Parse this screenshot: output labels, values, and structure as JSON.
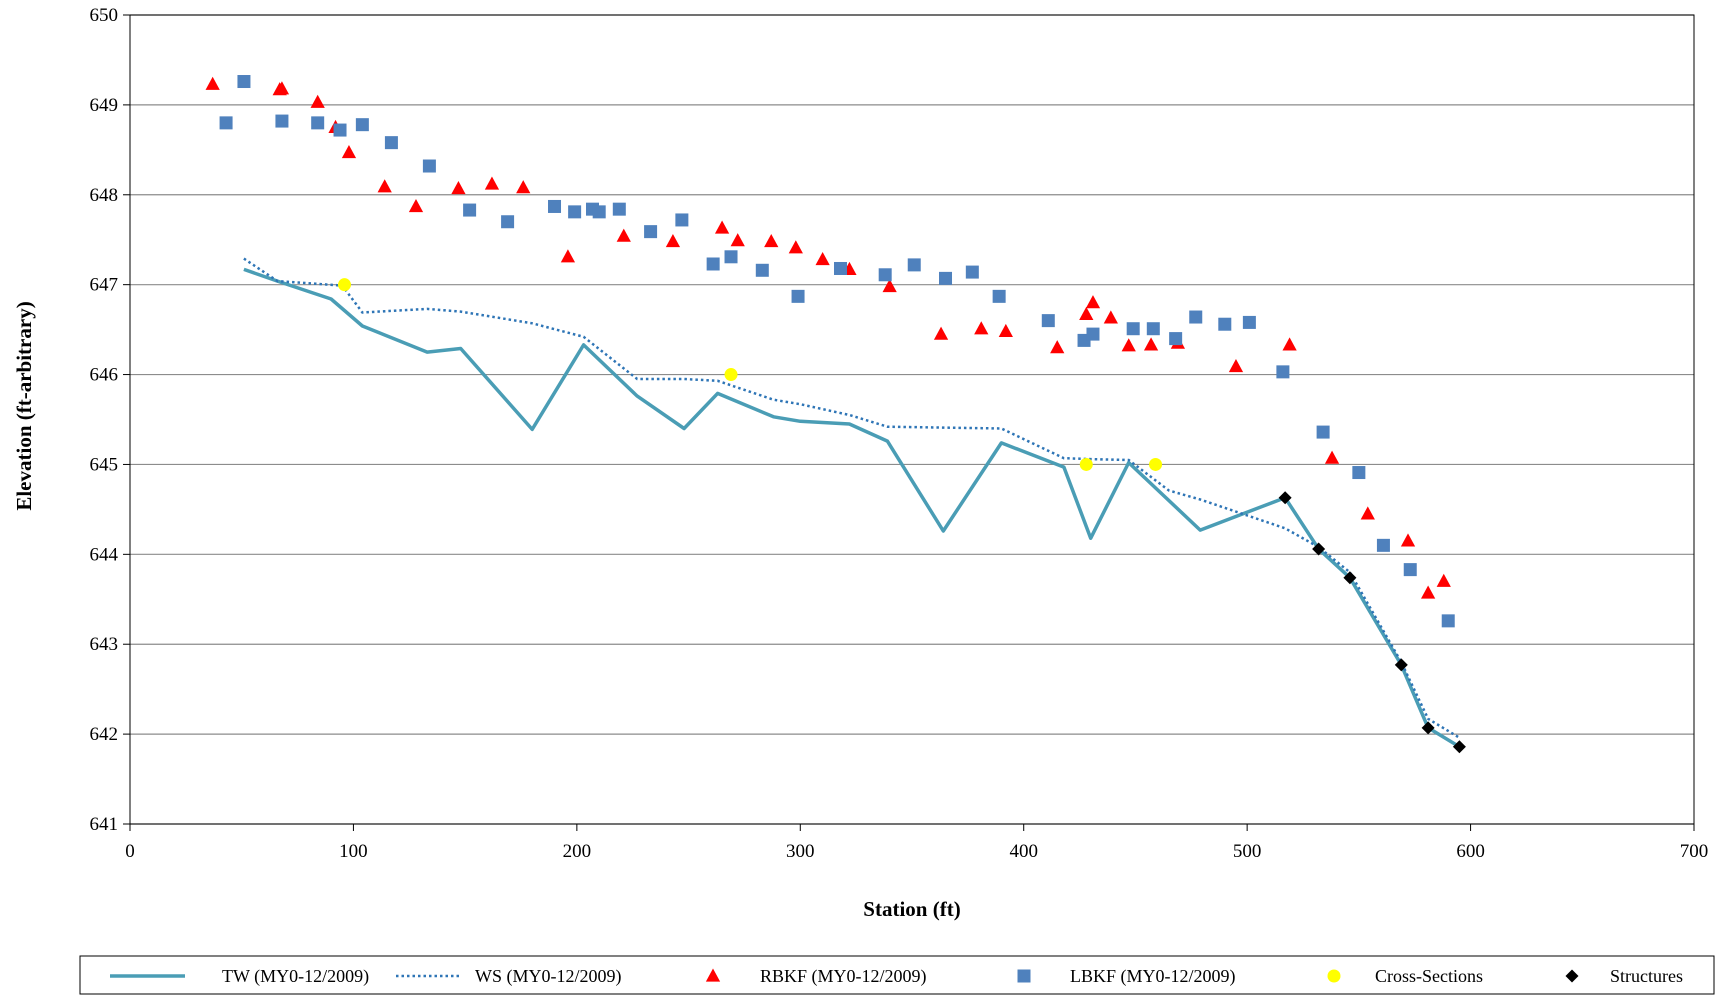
{
  "chart_data": {
    "type": "line",
    "title": "",
    "xlabel": "Station (ft)",
    "ylabel": "Elevation (ft-arbitrary)",
    "xlim": [
      0,
      700
    ],
    "ylim": [
      641,
      650
    ],
    "xticks": [
      0,
      100,
      200,
      300,
      400,
      500,
      600,
      700
    ],
    "yticks": [
      641,
      642,
      643,
      644,
      645,
      646,
      647,
      648,
      649,
      650
    ],
    "grid": "horizontal",
    "legend_position": "bottom",
    "colors": {
      "tw": "#4A9DB5",
      "ws": "#2E75B6",
      "rbkf": "#FF0000",
      "lbkf": "#4F81BD",
      "cross_sections": "#FFFF00",
      "structures": "#000000"
    },
    "series": [
      {
        "name": "TW (MY0-12/2009)",
        "style": "solid-line",
        "points": [
          [
            51,
            647.17
          ],
          [
            66,
            647.04
          ],
          [
            90,
            646.84
          ],
          [
            104,
            646.54
          ],
          [
            133,
            646.25
          ],
          [
            148,
            646.29
          ],
          [
            180,
            645.39
          ],
          [
            203,
            646.33
          ],
          [
            227,
            645.76
          ],
          [
            248,
            645.4
          ],
          [
            263,
            645.79
          ],
          [
            288,
            645.53
          ],
          [
            300,
            645.48
          ],
          [
            322,
            645.45
          ],
          [
            339,
            645.26
          ],
          [
            364,
            644.26
          ],
          [
            390,
            645.24
          ],
          [
            418,
            644.97
          ],
          [
            430,
            644.18
          ],
          [
            447,
            645.02
          ],
          [
            479,
            644.27
          ],
          [
            517,
            644.63
          ],
          [
            532,
            644.06
          ],
          [
            546,
            643.74
          ],
          [
            569,
            642.77
          ],
          [
            581,
            642.07
          ],
          [
            595,
            641.86
          ]
        ]
      },
      {
        "name": "WS (MY0-12/2009)",
        "style": "dotted-line",
        "points": [
          [
            51,
            647.29
          ],
          [
            66,
            647.04
          ],
          [
            95,
            646.99
          ],
          [
            104,
            646.69
          ],
          [
            133,
            646.73
          ],
          [
            148,
            646.7
          ],
          [
            180,
            646.57
          ],
          [
            203,
            646.42
          ],
          [
            227,
            645.95
          ],
          [
            248,
            645.95
          ],
          [
            263,
            645.93
          ],
          [
            288,
            645.72
          ],
          [
            300,
            645.67
          ],
          [
            322,
            645.55
          ],
          [
            339,
            645.42
          ],
          [
            364,
            645.41
          ],
          [
            390,
            645.4
          ],
          [
            418,
            645.07
          ],
          [
            430,
            645.06
          ],
          [
            447,
            645.05
          ],
          [
            465,
            644.71
          ],
          [
            479,
            644.61
          ],
          [
            517,
            644.29
          ],
          [
            532,
            644.08
          ],
          [
            546,
            643.8
          ],
          [
            569,
            642.8
          ],
          [
            581,
            642.17
          ],
          [
            595,
            641.96
          ]
        ]
      },
      {
        "name": "RBKF (MY0-12/2009)",
        "style": "triangle",
        "points": [
          [
            37,
            649.23
          ],
          [
            67,
            649.17
          ],
          [
            68,
            649.18
          ],
          [
            84,
            649.03
          ],
          [
            92,
            648.75
          ],
          [
            98,
            648.47
          ],
          [
            114,
            648.09
          ],
          [
            128,
            647.87
          ],
          [
            147,
            648.07
          ],
          [
            162,
            648.12
          ],
          [
            176,
            648.08
          ],
          [
            196,
            647.31
          ],
          [
            221,
            647.54
          ],
          [
            243,
            647.48
          ],
          [
            265,
            647.63
          ],
          [
            272,
            647.49
          ],
          [
            287,
            647.48
          ],
          [
            298,
            647.41
          ],
          [
            310,
            647.28
          ],
          [
            322,
            647.17
          ],
          [
            340,
            646.98
          ],
          [
            363,
            646.45
          ],
          [
            381,
            646.51
          ],
          [
            392,
            646.48
          ],
          [
            415,
            646.3
          ],
          [
            428,
            646.67
          ],
          [
            431,
            646.8
          ],
          [
            439,
            646.63
          ],
          [
            447,
            646.32
          ],
          [
            457,
            646.33
          ],
          [
            469,
            646.35
          ],
          [
            495,
            646.09
          ],
          [
            519,
            646.33
          ],
          [
            538,
            645.07
          ],
          [
            554,
            644.45
          ],
          [
            572,
            644.15
          ],
          [
            581,
            643.57
          ],
          [
            588,
            643.7
          ]
        ]
      },
      {
        "name": "LBKF (MY0-12/2009)",
        "style": "square",
        "points": [
          [
            43,
            648.8
          ],
          [
            51,
            649.26
          ],
          [
            68,
            648.82
          ],
          [
            84,
            648.8
          ],
          [
            94,
            648.72
          ],
          [
            104,
            648.78
          ],
          [
            117,
            648.58
          ],
          [
            134,
            648.32
          ],
          [
            152,
            647.83
          ],
          [
            169,
            647.7
          ],
          [
            190,
            647.87
          ],
          [
            199,
            647.81
          ],
          [
            207,
            647.84
          ],
          [
            210,
            647.81
          ],
          [
            219,
            647.84
          ],
          [
            233,
            647.59
          ],
          [
            247,
            647.72
          ],
          [
            261,
            647.23
          ],
          [
            269,
            647.31
          ],
          [
            283,
            647.16
          ],
          [
            299,
            646.87
          ],
          [
            318,
            647.18
          ],
          [
            338,
            647.11
          ],
          [
            351,
            647.22
          ],
          [
            365,
            647.07
          ],
          [
            377,
            647.14
          ],
          [
            389,
            646.87
          ],
          [
            411,
            646.6
          ],
          [
            427,
            646.38
          ],
          [
            431,
            646.45
          ],
          [
            449,
            646.51
          ],
          [
            458,
            646.51
          ],
          [
            468,
            646.4
          ],
          [
            477,
            646.64
          ],
          [
            490,
            646.56
          ],
          [
            501,
            646.58
          ],
          [
            516,
            646.03
          ],
          [
            534,
            645.36
          ],
          [
            550,
            644.91
          ],
          [
            561,
            644.1
          ],
          [
            573,
            643.83
          ],
          [
            590,
            643.26
          ]
        ]
      },
      {
        "name": "Cross-Sections",
        "style": "circle",
        "points": [
          [
            96,
            647.0
          ],
          [
            269,
            646.0
          ],
          [
            428,
            645.0
          ],
          [
            459,
            645.0
          ]
        ]
      },
      {
        "name": "Structures",
        "style": "diamond",
        "points": [
          [
            517,
            644.63
          ],
          [
            532,
            644.06
          ],
          [
            546,
            643.74
          ],
          [
            569,
            642.77
          ],
          [
            581,
            642.07
          ],
          [
            595,
            641.86
          ]
        ]
      }
    ]
  }
}
